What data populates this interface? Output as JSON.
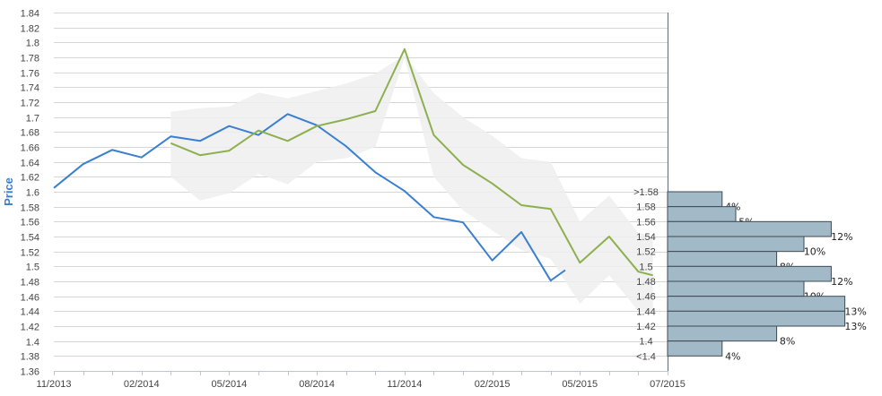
{
  "chart_data": {
    "type": "line",
    "ylabel": "Price",
    "ylim": [
      1.36,
      1.84
    ],
    "yticks": [
      "1.36",
      "1.38",
      "1.4",
      "1.42",
      "1.44",
      "1.46",
      "1.48",
      "1.5",
      "1.52",
      "1.54",
      "1.56",
      "1.58",
      "1.6",
      "1.62",
      "1.64",
      "1.66",
      "1.68",
      "1.7",
      "1.72",
      "1.74",
      "1.76",
      "1.78",
      "1.8",
      "1.82",
      "1.84"
    ],
    "xlim": [
      0,
      21
    ],
    "xticks": [
      {
        "x": 0,
        "label": "11/2013"
      },
      {
        "x": 3,
        "label": "02/2014"
      },
      {
        "x": 6,
        "label": "05/2014"
      },
      {
        "x": 9,
        "label": "08/2014"
      },
      {
        "x": 12,
        "label": "11/2014"
      },
      {
        "x": 15,
        "label": "02/2015"
      },
      {
        "x": 18,
        "label": "05/2015"
      },
      {
        "x": 21,
        "label": "07/2015"
      }
    ],
    "series": [
      {
        "color": "#3a7fd0",
        "x": [
          0,
          1,
          2,
          3,
          4,
          5,
          6,
          7,
          8,
          9,
          10,
          11,
          12,
          13,
          14,
          15,
          16,
          17,
          17.5
        ],
        "values": [
          1.605,
          1.637,
          1.656,
          1.646,
          1.674,
          1.668,
          1.688,
          1.676,
          1.704,
          1.689,
          1.661,
          1.626,
          1.601,
          1.566,
          1.559,
          1.508,
          1.546,
          1.481,
          1.495
        ]
      },
      {
        "color": "#8db04f",
        "x": [
          4,
          5,
          6,
          7,
          8,
          9,
          10,
          11,
          12,
          13,
          14,
          15,
          16,
          17,
          18,
          19,
          20,
          20.5
        ],
        "values": [
          1.665,
          1.649,
          1.655,
          1.682,
          1.668,
          1.688,
          1.697,
          1.708,
          1.791,
          1.676,
          1.636,
          1.611,
          1.582,
          1.577,
          1.505,
          1.54,
          1.493,
          1.488
        ]
      }
    ],
    "band": {
      "color": "#eeeeee",
      "x": [
        4,
        5,
        6,
        7,
        8,
        9,
        10,
        11,
        12,
        13,
        14,
        15,
        16,
        17,
        18,
        19,
        20,
        20.5
      ],
      "upper": [
        1.707,
        1.712,
        1.714,
        1.733,
        1.725,
        1.735,
        1.745,
        1.758,
        1.783,
        1.732,
        1.7,
        1.675,
        1.645,
        1.64,
        1.56,
        1.595,
        1.545,
        1.54
      ],
      "lower": [
        1.62,
        1.588,
        1.598,
        1.624,
        1.61,
        1.64,
        1.645,
        1.66,
        1.78,
        1.62,
        1.575,
        1.548,
        1.522,
        1.51,
        1.45,
        1.488,
        1.44,
        1.436
      ]
    },
    "histogram": {
      "color": "#a2b9c7",
      "bins": [
        {
          "label": ">1.58",
          "y_low": 1.58,
          "y_high": 1.6,
          "pct": 4,
          "pct_label": "4%"
        },
        {
          "label": "1.58",
          "y_low": 1.56,
          "y_high": 1.58,
          "pct": 5,
          "pct_label": "5%"
        },
        {
          "label": "1.56",
          "y_low": 1.54,
          "y_high": 1.56,
          "pct": 12,
          "pct_label": "12%"
        },
        {
          "label": "1.54",
          "y_low": 1.52,
          "y_high": 1.54,
          "pct": 10,
          "pct_label": "10%"
        },
        {
          "label": "1.52",
          "y_low": 1.5,
          "y_high": 1.52,
          "pct": 8,
          "pct_label": "8%"
        },
        {
          "label": "1.5",
          "y_low": 1.48,
          "y_high": 1.5,
          "pct": 12,
          "pct_label": "12%"
        },
        {
          "label": "1.48",
          "y_low": 1.46,
          "y_high": 1.48,
          "pct": 10,
          "pct_label": "10%"
        },
        {
          "label": "1.46",
          "y_low": 1.44,
          "y_high": 1.46,
          "pct": 13,
          "pct_label": "13%"
        },
        {
          "label": "1.44",
          "y_low": 1.42,
          "y_high": 1.44,
          "pct": 13,
          "pct_label": "13%"
        },
        {
          "label": "1.42",
          "y_low": 1.4,
          "y_high": 1.42,
          "pct": 8,
          "pct_label": "8%"
        },
        {
          "label": "1.4",
          "y_low": 1.38,
          "y_high": 1.4,
          "pct": 4,
          "pct_label": "4%"
        },
        {
          "label": "<1.4",
          "y_low": 1.38,
          "y_high": 1.38,
          "pct": 0,
          "pct_label": ""
        }
      ]
    }
  }
}
